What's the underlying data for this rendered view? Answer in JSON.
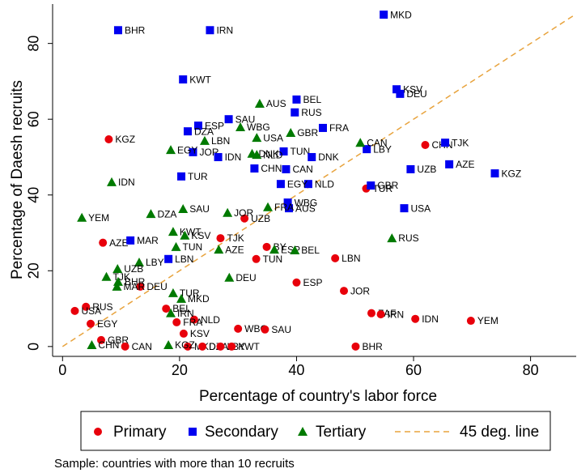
{
  "chart_data": {
    "type": "scatter",
    "x_label": "Percentage of country's labor force",
    "y_label": "Percentage of Daesh recruits",
    "xlim": [
      -1.7,
      87.8
    ],
    "ylim": [
      -2.6,
      90.4
    ],
    "xticks": [
      0,
      20,
      40,
      60,
      80
    ],
    "yticks": [
      0,
      20,
      40,
      60,
      80
    ],
    "series": [
      {
        "name": "Primary",
        "color": "#e8000b",
        "marker": "circle",
        "labels": [
          "KGZ",
          "CHN",
          "TUR",
          "UZB",
          "AZE",
          "TJK",
          "BY",
          "TUN",
          "LBN",
          "ESP",
          "JOR",
          "DEU",
          "RUS",
          "USA",
          "EGY",
          "BEL",
          "NLD",
          "FRA",
          "ZAF",
          "IRN",
          "IDN",
          "YEM",
          "KSV",
          "WBG",
          "SAU",
          "GBR",
          "CAN",
          "MKD",
          "DZA",
          "LBY",
          "KWT",
          "BHR"
        ],
        "x": [
          7.9,
          62.0,
          51.9,
          31.1,
          6.9,
          27.0,
          34.9,
          33.1,
          46.6,
          40.0,
          48.1,
          13.3,
          4.0,
          2.1,
          4.8,
          17.7,
          22.5,
          19.5,
          52.8,
          54.4,
          60.3,
          69.8,
          20.7,
          30.0,
          34.6,
          6.6,
          10.7,
          21.4,
          23.9,
          27.0,
          28.9,
          50.1
        ],
        "values": [
          54.7,
          53.2,
          41.7,
          33.8,
          27.4,
          28.6,
          26.3,
          23.1,
          23.3,
          16.9,
          14.7,
          15.8,
          10.5,
          9.4,
          6.0,
          10.0,
          7.1,
          6.4,
          8.8,
          8.5,
          7.3,
          6.8,
          3.4,
          4.7,
          4.5,
          1.7,
          0,
          0,
          0,
          0,
          0,
          0
        ]
      },
      {
        "name": "Secondary",
        "color": "#0000f0",
        "marker": "square",
        "labels": [
          "MKD",
          "BHR",
          "IRN",
          "KWT",
          "KSV",
          "DEU",
          "BEL",
          "RUS",
          "ESP",
          "SAU",
          "DZA",
          "FRA",
          "TUN",
          "DNK",
          "JOR",
          "IDN",
          "LBY",
          "TJK",
          "UZB",
          "AZE",
          "KGZ",
          "CHN",
          "CAN",
          "TUR",
          "NLD",
          "EGY",
          "GBR",
          "WBG",
          "AUS",
          "USA",
          "MAR",
          "LBN"
        ],
        "x": [
          54.9,
          9.5,
          25.2,
          20.6,
          57.1,
          57.7,
          40.0,
          39.7,
          23.2,
          28.4,
          21.4,
          44.5,
          37.8,
          42.6,
          22.3,
          26.6,
          52.0,
          65.4,
          59.5,
          66.1,
          73.9,
          32.8,
          38.2,
          20.3,
          42.0,
          37.3,
          52.7,
          38.5,
          38.7,
          58.4,
          11.6,
          18.1
        ],
        "values": [
          87.6,
          83.5,
          83.5,
          70.5,
          67.9,
          66.7,
          65.2,
          61.8,
          58.3,
          60.0,
          56.8,
          57.7,
          51.5,
          50.0,
          51.3,
          50.0,
          52.1,
          53.8,
          46.8,
          48.1,
          45.7,
          47.0,
          46.8,
          44.9,
          42.9,
          42.9,
          42.5,
          38.0,
          36.5,
          36.5,
          28.0,
          23.1
        ]
      },
      {
        "name": "Tertiary",
        "color": "#007a00",
        "marker": "triangle",
        "labels": [
          "AUS",
          "CAN",
          "LBN",
          "WBG",
          "USA",
          "GBR",
          "FRA",
          "DNK",
          "NLD",
          "EGY",
          "IDN",
          "YEM",
          "DZA",
          "SAU",
          "JOR",
          "RUS",
          "KWT",
          "KSV",
          "TUN",
          "AZE",
          "ESP",
          "BEL",
          "LBY",
          "UZB",
          "TJK",
          "BHR",
          "MAR",
          "DEU",
          "TUR",
          "MKD",
          "IRN",
          "CHN",
          "KGZ"
        ],
        "x": [
          33.7,
          50.9,
          24.3,
          30.4,
          33.2,
          39.0,
          35.1,
          32.4,
          33.2,
          18.5,
          8.4,
          3.3,
          15.1,
          20.6,
          28.2,
          56.3,
          18.9,
          20.9,
          19.4,
          26.7,
          36.2,
          39.7,
          13.1,
          9.4,
          7.5,
          9.5,
          9.3,
          28.5,
          18.9,
          20.3,
          18.5,
          5.0,
          18.1
        ],
        "values": [
          64.1,
          53.8,
          54.3,
          57.9,
          55.1,
          56.4,
          36.8,
          50.9,
          50.6,
          51.9,
          43.4,
          34.0,
          35.0,
          36.3,
          35.3,
          28.6,
          30.3,
          29.3,
          26.3,
          25.6,
          25.6,
          25.4,
          22.2,
          20.5,
          18.4,
          17.1,
          15.8,
          18.2,
          14.1,
          12.6,
          8.8,
          0.4,
          0.4
        ]
      }
    ],
    "reference_line": {
      "name": "45 deg. line",
      "color": "#e8a33d"
    },
    "note": "Sample: countries with more than 10 recruits"
  }
}
